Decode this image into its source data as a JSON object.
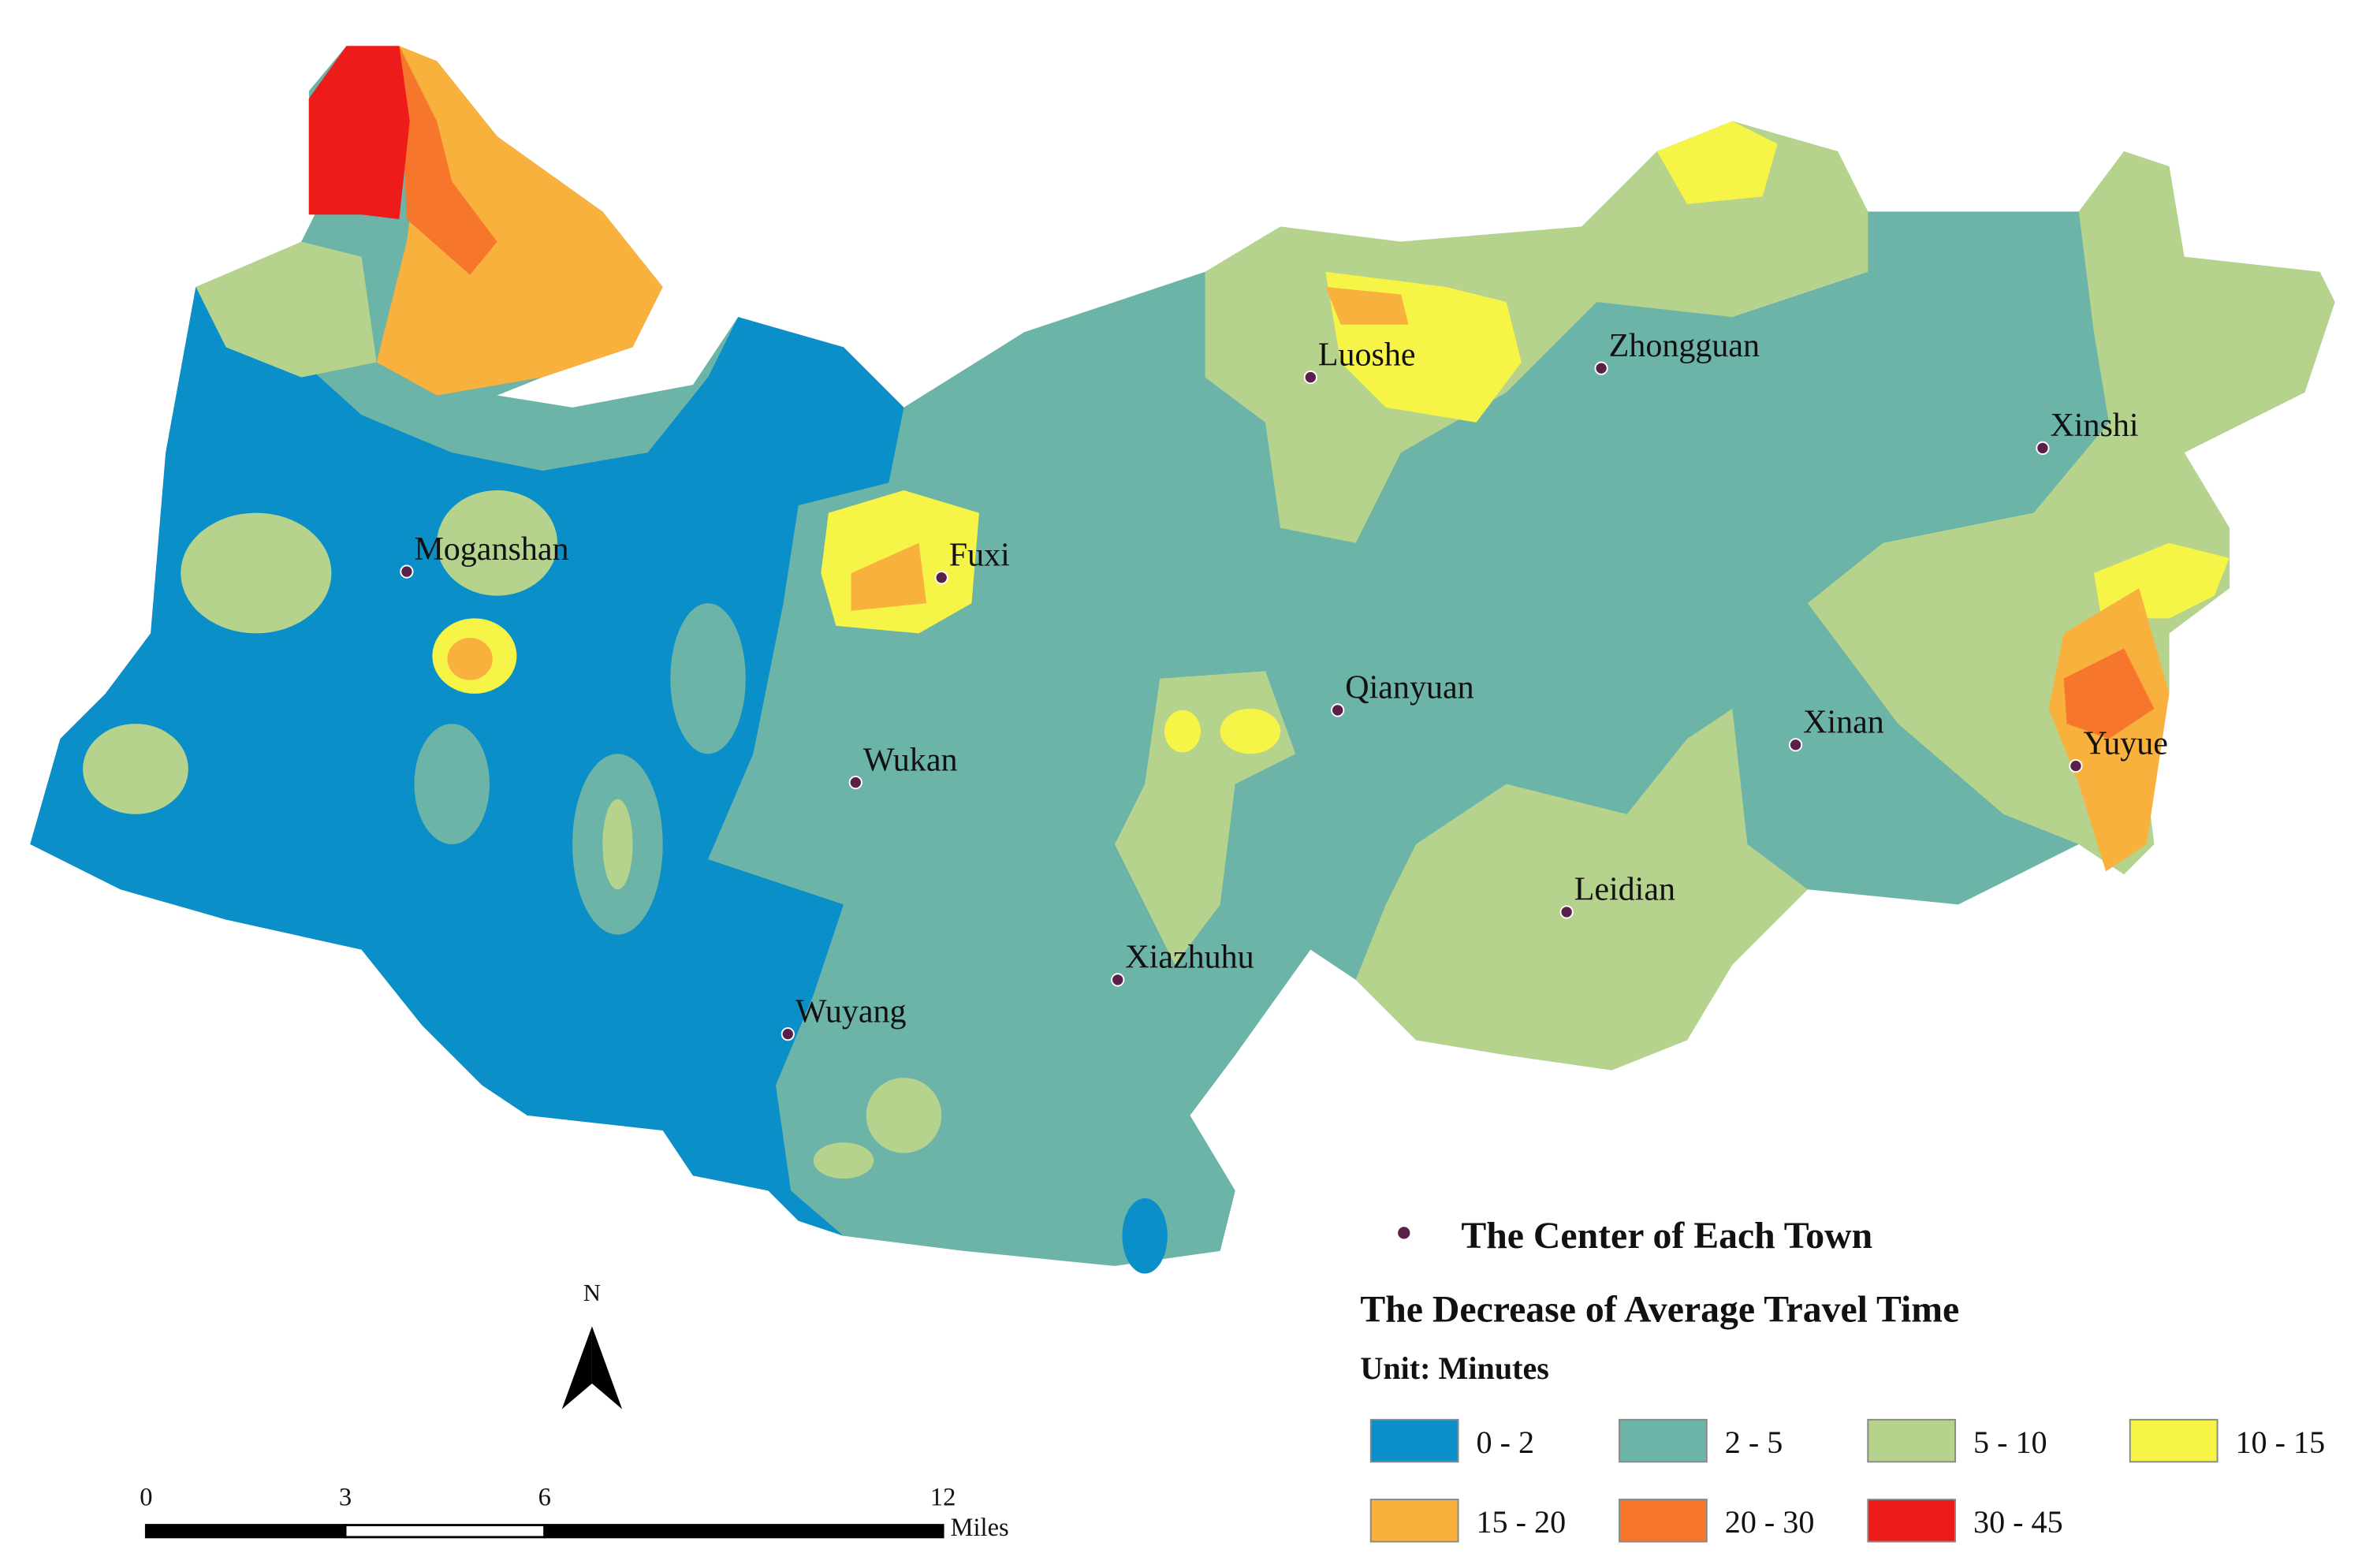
{
  "map": {
    "towns": [
      {
        "name": "Luoshe"
      },
      {
        "name": "Zhongguan"
      },
      {
        "name": "Xinshi"
      },
      {
        "name": "Moganshan"
      },
      {
        "name": "Fuxi"
      },
      {
        "name": "Qianyuan"
      },
      {
        "name": "Wukan"
      },
      {
        "name": "Xinan"
      },
      {
        "name": "Yuyue"
      },
      {
        "name": "Leidian"
      },
      {
        "name": "Xiazhuhu"
      },
      {
        "name": "Wuyang"
      }
    ],
    "north": "N",
    "scale_bar": {
      "ticks": [
        0,
        3,
        6,
        12
      ],
      "unit": "Miles"
    },
    "legend": {
      "point_label": "The Center of Each Town",
      "title": "The Decrease of Average Travel Time",
      "unit": "Unit: Minutes",
      "classes": [
        {
          "label": "0 - 2",
          "color": "#0b8fc8"
        },
        {
          "label": "2 - 5",
          "color": "#6cb3a8"
        },
        {
          "label": "5 - 10",
          "color": "#b6d38e"
        },
        {
          "label": "10 - 15",
          "color": "#f6f446"
        },
        {
          "label": "15 - 20",
          "color": "#f9b13e"
        },
        {
          "label": "20 - 30",
          "color": "#f6762b"
        },
        {
          "label": "30 - 45",
          "color": "#ee1b1b"
        }
      ],
      "point_color": "#5a1f4a"
    }
  }
}
